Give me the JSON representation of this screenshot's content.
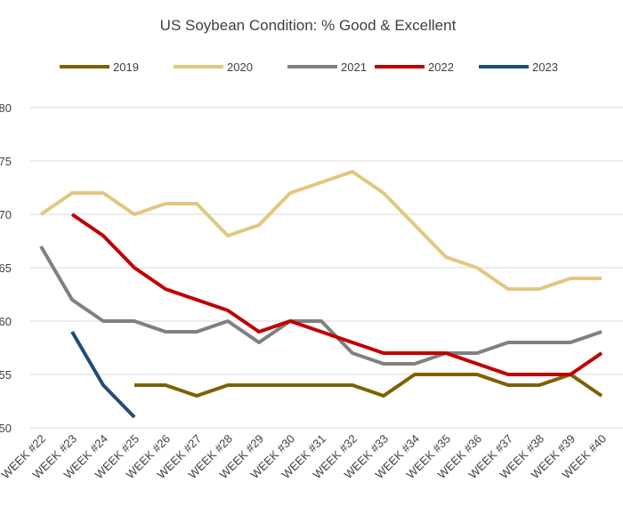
{
  "chart_data": {
    "type": "line",
    "title": "US Soybean Condition: % Good & Excellent",
    "xlabel": "",
    "ylabel": "",
    "categories": [
      "WEEK #22",
      "WEEK #23",
      "WEEK #24",
      "WEEK #25",
      "WEEK #26",
      "WEEK #27",
      "WEEK #28",
      "WEEK #29",
      "WEEK #30",
      "WEEK #31",
      "WEEK #32",
      "WEEK #33",
      "WEEK #34",
      "WEEK #35",
      "WEEK #36",
      "WEEK #37",
      "WEEK #38",
      "WEEK #39",
      "WEEK #40"
    ],
    "ylim": [
      50,
      80
    ],
    "yticks": [
      50,
      55,
      60,
      65,
      70,
      75,
      80
    ],
    "ytick_labels": [
      "50",
      "55",
      "60",
      "65",
      "70",
      "75",
      "80"
    ],
    "grid": true,
    "legend": "top",
    "series": [
      {
        "name": "2019",
        "color": "#7f6000",
        "values": [
          null,
          null,
          null,
          54,
          54,
          53,
          54,
          54,
          54,
          54,
          54,
          53,
          55,
          55,
          55,
          54,
          54,
          55,
          53
        ]
      },
      {
        "name": "2020",
        "color": "#e2c77f",
        "values": [
          70,
          72,
          72,
          70,
          71,
          71,
          68,
          69,
          72,
          73,
          74,
          72,
          69,
          66,
          65,
          63,
          63,
          64,
          64
        ]
      },
      {
        "name": "2021",
        "color": "#808080",
        "values": [
          67,
          62,
          60,
          60,
          59,
          59,
          60,
          58,
          60,
          60,
          57,
          56,
          56,
          57,
          57,
          58,
          58,
          58,
          59
        ]
      },
      {
        "name": "2022",
        "color": "#c00000",
        "values": [
          null,
          70,
          68,
          65,
          63,
          62,
          61,
          59,
          60,
          59,
          58,
          57,
          57,
          57,
          56,
          55,
          55,
          55,
          57
        ]
      },
      {
        "name": "2023",
        "color": "#1f4e79",
        "values": [
          null,
          59,
          54,
          51,
          null,
          null,
          null,
          null,
          null,
          null,
          null,
          null,
          null,
          null,
          null,
          null,
          null,
          null,
          null
        ]
      }
    ]
  }
}
